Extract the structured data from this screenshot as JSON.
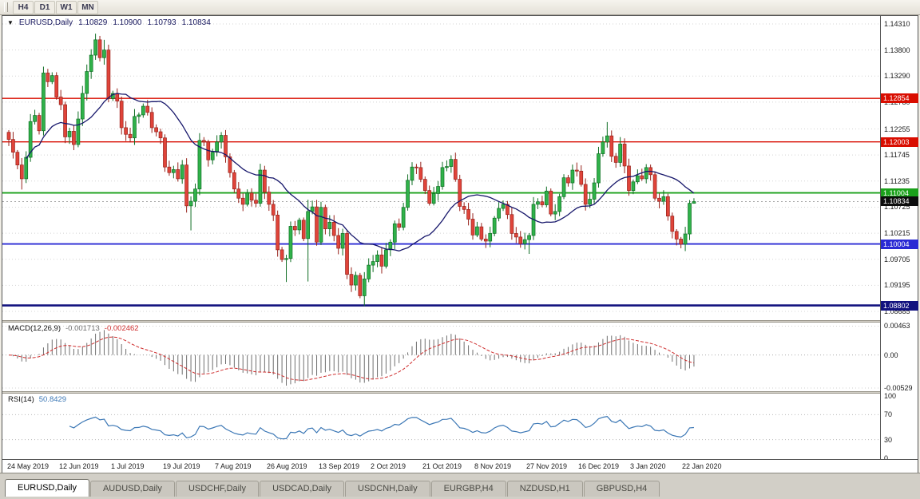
{
  "toolbar": {
    "buttons": [
      "H4",
      "D1",
      "W1",
      "MN"
    ]
  },
  "chart_data": {
    "type": "candlestick",
    "symbol": "EURUSD",
    "timeframe": "Daily",
    "header": {
      "title": "EURUSD,Daily",
      "open": "1.10829",
      "high": "1.10900",
      "low": "1.10793",
      "close": "1.10834"
    },
    "price_axis": {
      "ticks": [
        {
          "label": "1.14310",
          "value": 1.1431
        },
        {
          "label": "1.13800",
          "value": 1.138
        },
        {
          "label": "1.13290",
          "value": 1.1329
        },
        {
          "label": "1.12780",
          "value": 1.1278
        },
        {
          "label": "1.12255",
          "value": 1.12255
        },
        {
          "label": "1.11745",
          "value": 1.11745
        },
        {
          "label": "1.11235",
          "value": 1.11235
        },
        {
          "label": "1.10725",
          "value": 1.10725
        },
        {
          "label": "1.10215",
          "value": 1.10215
        },
        {
          "label": "1.09705",
          "value": 1.09705
        },
        {
          "label": "1.09195",
          "value": 1.09195
        },
        {
          "label": "1.08685",
          "value": 1.08685
        }
      ]
    },
    "levels": [
      {
        "label": "1.12854",
        "value": 1.12854,
        "color": "#d90d00",
        "width": 1.4
      },
      {
        "label": "1.12003",
        "value": 1.12003,
        "color": "#d90d00",
        "width": 1.4
      },
      {
        "label": "1.11004",
        "value": 1.11004,
        "color": "#1ba11b",
        "width": 1.8
      },
      {
        "label": "1.10004",
        "value": 1.10004,
        "color": "#2a2ad4",
        "width": 1.8
      },
      {
        "label": "1.08802",
        "value": 1.08802,
        "color": "#12127f",
        "width": 2.6
      }
    ],
    "bid": {
      "label": "1.10834",
      "value": 1.10834,
      "color": "#0d0d0d"
    },
    "candles": {
      "first_open": 1.1219,
      "up_color": "#30b24a",
      "up_border": "#0f6e24",
      "down_color": "#e0443a",
      "down_border": "#97231c",
      "closes": [
        1.1205,
        1.118,
        1.1155,
        1.1128,
        1.117,
        1.124,
        1.1252,
        1.1222,
        1.1335,
        1.1318,
        1.133,
        1.1288,
        1.1273,
        1.121,
        1.1221,
        1.1195,
        1.1245,
        1.1295,
        1.1338,
        1.137,
        1.14,
        1.1365,
        1.138,
        1.1285,
        1.1295,
        1.128,
        1.1228,
        1.1215,
        1.1208,
        1.125,
        1.1253,
        1.127,
        1.1258,
        1.1228,
        1.122,
        1.1208,
        1.1151,
        1.114,
        1.1146,
        1.1128,
        1.1155,
        1.1075,
        1.1084,
        1.1108,
        1.1203,
        1.12,
        1.1165,
        1.118,
        1.12,
        1.1213,
        1.1171,
        1.114,
        1.1108,
        1.109,
        1.1078,
        1.11,
        1.1086,
        1.108,
        1.1145,
        1.1102,
        1.1078,
        1.1057,
        1.0989,
        1.097,
        1.0972,
        1.1035,
        1.1028,
        1.1047,
        1.1011,
        1.1064,
        1.1073,
        1.1004,
        1.1072,
        1.103,
        1.1043,
        1.1017,
        1.0992,
        1.1021,
        1.0941,
        1.092,
        1.0939,
        1.0899,
        1.0932,
        1.0959,
        1.0966,
        1.0979,
        1.0957,
        1.0989,
        1.1004,
        1.104,
        1.1033,
        1.1072,
        1.1125,
        1.1151,
        1.115,
        1.1127,
        1.1105,
        1.108,
        1.1099,
        1.1113,
        1.115,
        1.1152,
        1.1166,
        1.1127,
        1.1074,
        1.1068,
        1.1049,
        1.1018,
        1.1034,
        1.101,
        1.1006,
        1.1021,
        1.1051,
        1.107,
        1.1078,
        1.1058,
        1.1021,
        1.1014,
        1.1001,
        1.1009,
        1.1017,
        1.1078,
        1.1083,
        1.1077,
        1.1104,
        1.1059,
        1.1064,
        1.1093,
        1.113,
        1.112,
        1.1145,
        1.1143,
        1.1117,
        1.1078,
        1.1088,
        1.112,
        1.1177,
        1.12,
        1.1212,
        1.1172,
        1.116,
        1.1196,
        1.1153,
        1.1105,
        1.1122,
        1.1134,
        1.1128,
        1.115,
        1.1136,
        1.109,
        1.1084,
        1.1093,
        1.1055,
        1.1025,
        1.101,
        1.1,
        1.102,
        1.108,
        1.10834
      ],
      "spikes": [
        {
          "i": 3,
          "l": 1.1107
        },
        {
          "i": 20,
          "h": 1.1412
        },
        {
          "i": 22,
          "h": 1.14
        },
        {
          "i": 42,
          "l": 1.1027
        },
        {
          "i": 64,
          "l": 1.0926
        },
        {
          "i": 69,
          "l": 1.0927,
          "h": 1.1087
        },
        {
          "i": 82,
          "l": 1.0879
        },
        {
          "i": 120,
          "l": 1.0981
        },
        {
          "i": 138,
          "h": 1.1239
        },
        {
          "i": 155,
          "l": 1.0992
        },
        {
          "i": 158,
          "h": 1.109,
          "l": 1.10793
        }
      ]
    },
    "ma": {
      "period": 20,
      "color": "#17176b"
    },
    "dates": [
      "24 May 2019",
      "12 Jun 2019",
      "1 Jul 2019",
      "19 Jul 2019",
      "7 Aug 2019",
      "26 Aug 2019",
      "13 Sep 2019",
      "2 Oct 2019",
      "21 Oct 2019",
      "8 Nov 2019",
      "27 Nov 2019",
      "16 Dec 2019",
      "3 Jan 2020",
      "22 Jan 2020"
    ],
    "macd": {
      "name": "MACD(12,26,9)",
      "value_main": "-0.001713",
      "value_signal": "-0.002462",
      "axis": [
        {
          "label": "0.00463",
          "value": 0.00463
        },
        {
          "label": "0.00",
          "value": 0
        },
        {
          "label": "-0.00529",
          "value": -0.00529
        }
      ],
      "range": {
        "max": 0.0052,
        "min": -0.0058
      },
      "hist_color": "#6f6f6f",
      "signal_color": "#cf2e2e"
    },
    "rsi": {
      "name": "RSI(14)",
      "value": "50.8429",
      "axis": [
        {
          "label": "100",
          "value": 100
        },
        {
          "label": "70",
          "value": 70
        },
        {
          "label": "30",
          "value": 30
        },
        {
          "label": "0",
          "value": 0
        }
      ],
      "levels": [
        70,
        30
      ],
      "color": "#3b77b5"
    }
  },
  "tabs": [
    {
      "label": "EURUSD,Daily",
      "active": true
    },
    {
      "label": "AUDUSD,Daily",
      "active": false
    },
    {
      "label": "USDCHF,Daily",
      "active": false
    },
    {
      "label": "USDCAD,Daily",
      "active": false
    },
    {
      "label": "USDCNH,Daily",
      "active": false
    },
    {
      "label": "EURGBP,H4",
      "active": false
    },
    {
      "label": "NZDUSD,H1",
      "active": false
    },
    {
      "label": "GBPUSD,H4",
      "active": false
    }
  ]
}
